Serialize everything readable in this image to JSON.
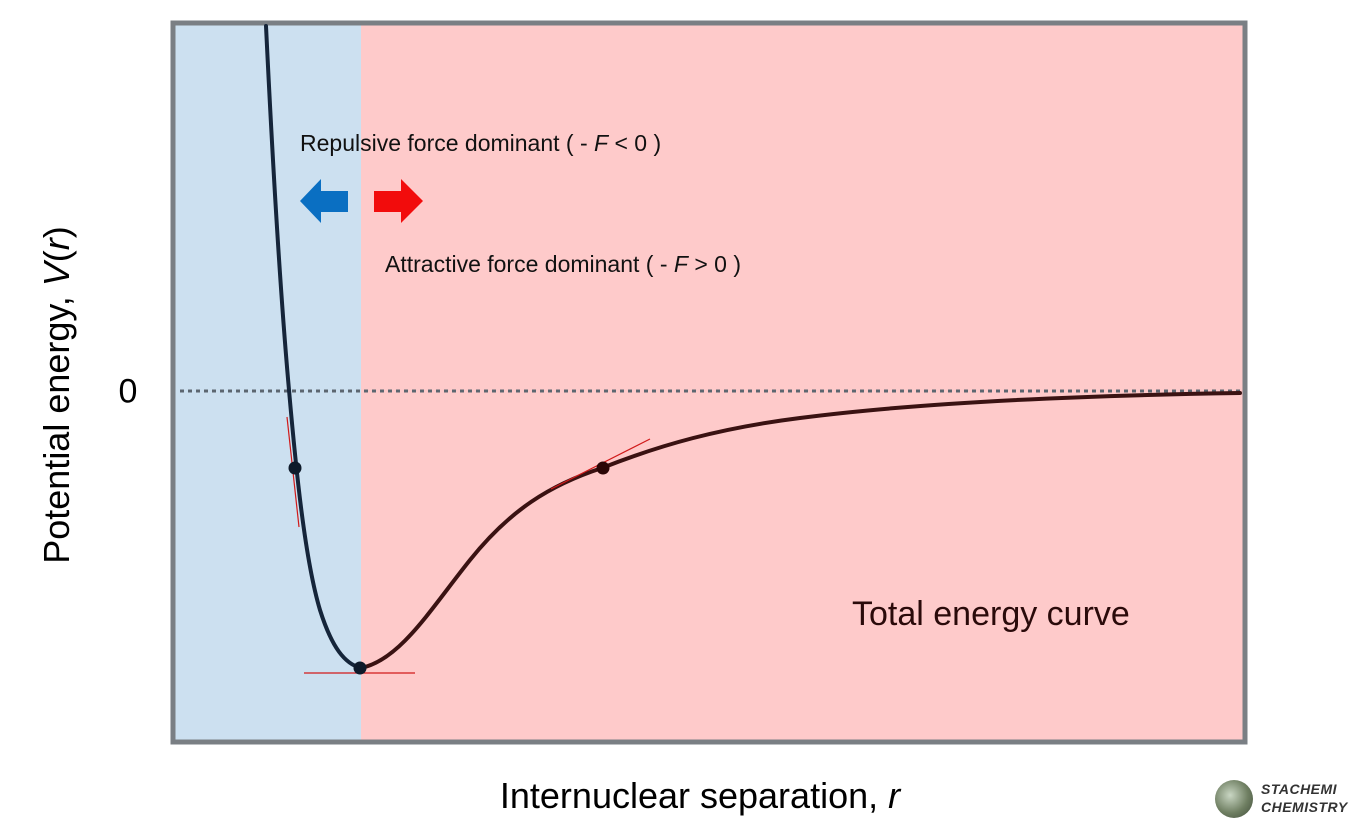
{
  "axes": {
    "y_label_main": "Potential energy, ",
    "y_label_var": "V",
    "y_label_arg": "r",
    "x_label_main": "Internuclear separation, ",
    "x_label_var": "r",
    "zero_tick": "0"
  },
  "annotations": {
    "repulsive_pre": "Repulsive force dominant ( - ",
    "repulsive_var": "F",
    "repulsive_post": " < 0 )",
    "attractive_pre": "Attractive force dominant ( - ",
    "attractive_var": "F",
    "attractive_post": " > 0 )",
    "curve_title": "Total energy curve"
  },
  "colors": {
    "frame": "#7a7f84",
    "repulsive_region": "#cce0f0",
    "attractive_region": "#fecaca",
    "curve_repulsive": "#15253a",
    "curve_attractive": "#3a1212",
    "tangent": "#d11a1a",
    "left_arrow": "#0a6fc2",
    "right_arrow": "#f20c0c",
    "zero_line": "#5c6670"
  },
  "icons": {
    "left_arrow": "left-arrow-icon",
    "right_arrow": "right-arrow-icon",
    "logo": "stachemi-logo-icon"
  },
  "logo": {
    "line1": "STACHEMI",
    "line2": "CHEMISTRY"
  }
}
